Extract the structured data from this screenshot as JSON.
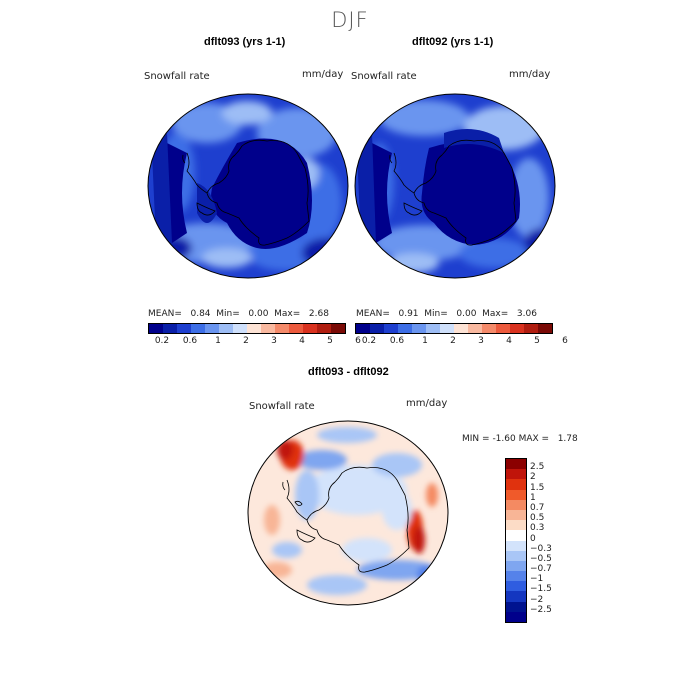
{
  "title": "DJF",
  "maps": [
    {
      "title": "dflt093 (yrs 1-1)",
      "variable": "Snowfall rate",
      "units": "mm/day",
      "stats": {
        "mean_label": "MEAN=",
        "mean": "0.84",
        "min_label": "Min=",
        "min": "0.00",
        "max_label": "Max=",
        "max": "2.68"
      }
    },
    {
      "title": "dflt092 (yrs 1-1)",
      "variable": "Snowfall rate",
      "units": "mm/day",
      "stats": {
        "mean_label": "MEAN=",
        "mean": "0.91",
        "min_label": "Min=",
        "min": "0.00",
        "max_label": "Max=",
        "max": "3.06"
      }
    }
  ],
  "abs_colorbar": {
    "colors": [
      "#00008b",
      "#0a1fa8",
      "#1e3fcf",
      "#3d6ee6",
      "#6a95ef",
      "#9dbdf5",
      "#cfe0fb",
      "#fde3d5",
      "#f9b9a0",
      "#f48a6a",
      "#ec5a3d",
      "#d9321f",
      "#b01d10",
      "#7a0a06"
    ],
    "ticks": [
      "0.2",
      "0.6",
      "1",
      "2",
      "3",
      "4",
      "5",
      "6"
    ]
  },
  "diff": {
    "title": "dflt093 - dflt092",
    "variable": "Snowfall rate",
    "units": "mm/day",
    "min_label": "MIN =",
    "min": "-1.60",
    "max_label": "MAX =",
    "max": "1.78",
    "colors": [
      "#8b0000",
      "#c0140a",
      "#e0320e",
      "#f05a2a",
      "#f48a62",
      "#f8b596",
      "#fcdcc6",
      "#ffffff",
      "#d3e3fb",
      "#a9c6f6",
      "#7fa6f0",
      "#5582ea",
      "#2f5de0",
      "#1436c0",
      "#00138f",
      "#00008b"
    ],
    "ticks": [
      "2.5",
      "2",
      "1.5",
      "1",
      "0.7",
      "0.5",
      "0.3",
      "0",
      "−0.3",
      "−0.5",
      "−0.7",
      "−1",
      "−1.5",
      "−2",
      "−2.5"
    ]
  }
}
